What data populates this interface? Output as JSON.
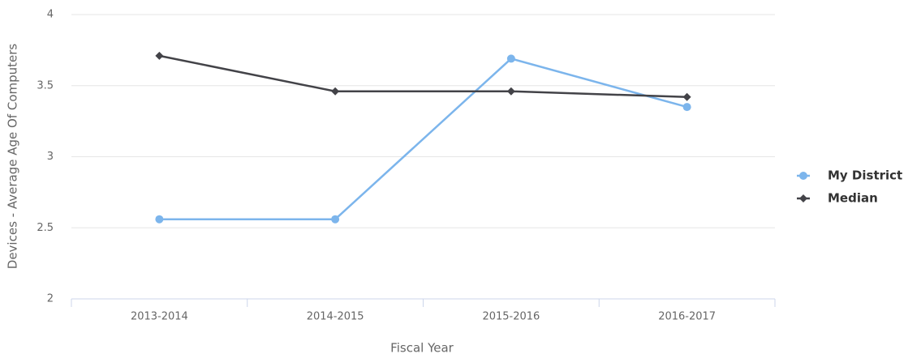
{
  "chart_data": {
    "type": "line",
    "x_label": "Fiscal Year",
    "y_label": "Devices - Average Age Of Computers",
    "categories": [
      "2013-2014",
      "2014-2015",
      "2015-2016",
      "2016-2017"
    ],
    "series": [
      {
        "name": "My District",
        "color": "#7cb5ec",
        "marker": "circle",
        "values": [
          2.56,
          2.56,
          3.69,
          3.35
        ]
      },
      {
        "name": "Median",
        "color": "#434348",
        "marker": "diamond",
        "values": [
          3.71,
          3.46,
          3.46,
          3.42
        ]
      }
    ],
    "ylim": [
      2,
      4
    ],
    "yticks": [
      2,
      2.5,
      3,
      3.5,
      4
    ],
    "grid": true,
    "legend": "right"
  }
}
